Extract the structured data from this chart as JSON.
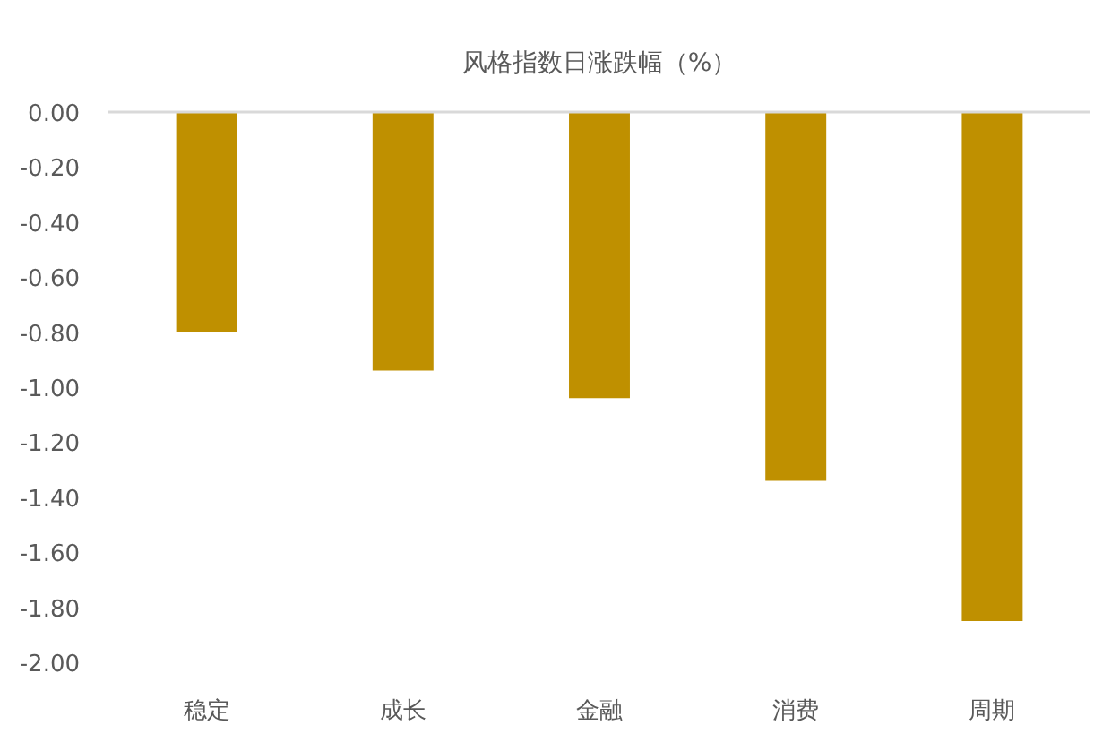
{
  "chart_data": {
    "type": "bar",
    "title": "风格指数日涨跌幅（%）",
    "categories": [
      "稳定",
      "成长",
      "金融",
      "消费",
      "周期"
    ],
    "values": [
      -0.8,
      -0.94,
      -1.04,
      -1.34,
      -1.85
    ],
    "color": "#bf9000",
    "ylim": [
      -2.0,
      0.0
    ],
    "yticks": [
      {
        "value": 0.0,
        "label": "0.00"
      },
      {
        "value": -0.2,
        "label": "-0.20"
      },
      {
        "value": -0.4,
        "label": "-0.40"
      },
      {
        "value": -0.6,
        "label": "-0.60"
      },
      {
        "value": -0.8,
        "label": "-0.80"
      },
      {
        "value": -1.0,
        "label": "-1.00"
      },
      {
        "value": -1.2,
        "label": "-1.20"
      },
      {
        "value": -1.4,
        "label": "-1.40"
      },
      {
        "value": -1.6,
        "label": "-1.60"
      },
      {
        "value": -1.8,
        "label": "-1.80"
      },
      {
        "value": -2.0,
        "label": "-2.00"
      }
    ]
  }
}
